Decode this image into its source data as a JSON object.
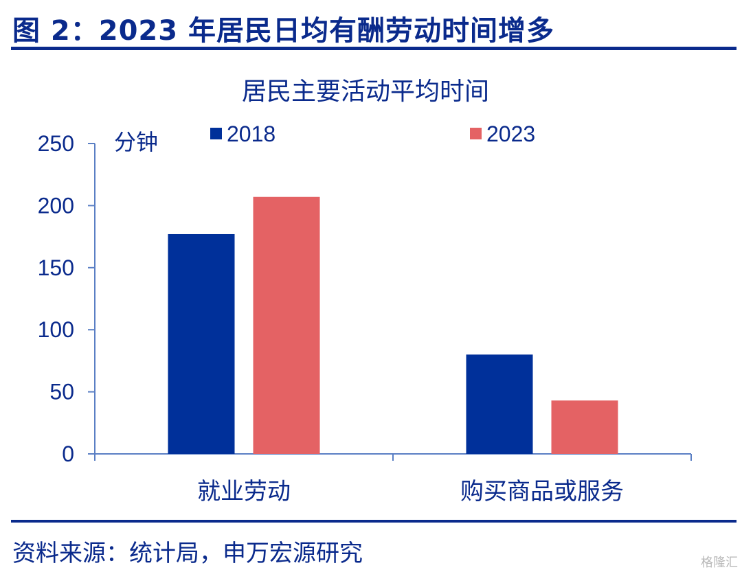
{
  "figure_title": "图 2：2023 年居民日均有酬劳动时间增多",
  "source_note": "资料来源：统计局，申万宏源研究",
  "watermark": "格隆汇",
  "colors": {
    "text": "#0a2a8c",
    "axis": "#5a7fc4",
    "series_2018": "#00309a",
    "series_2023": "#e46264"
  },
  "chart_data": {
    "type": "bar",
    "title": "居民主要活动平均时间",
    "ylabel": "分钟",
    "categories": [
      "就业劳动",
      "购买商品或服务"
    ],
    "series": [
      {
        "name": "2018",
        "values": [
          177,
          80
        ]
      },
      {
        "name": "2023",
        "values": [
          207,
          43
        ]
      }
    ],
    "ylim": [
      0,
      250
    ],
    "yticks": [
      0,
      50,
      100,
      150,
      200,
      250
    ],
    "grid": false,
    "legend_position": "top"
  }
}
